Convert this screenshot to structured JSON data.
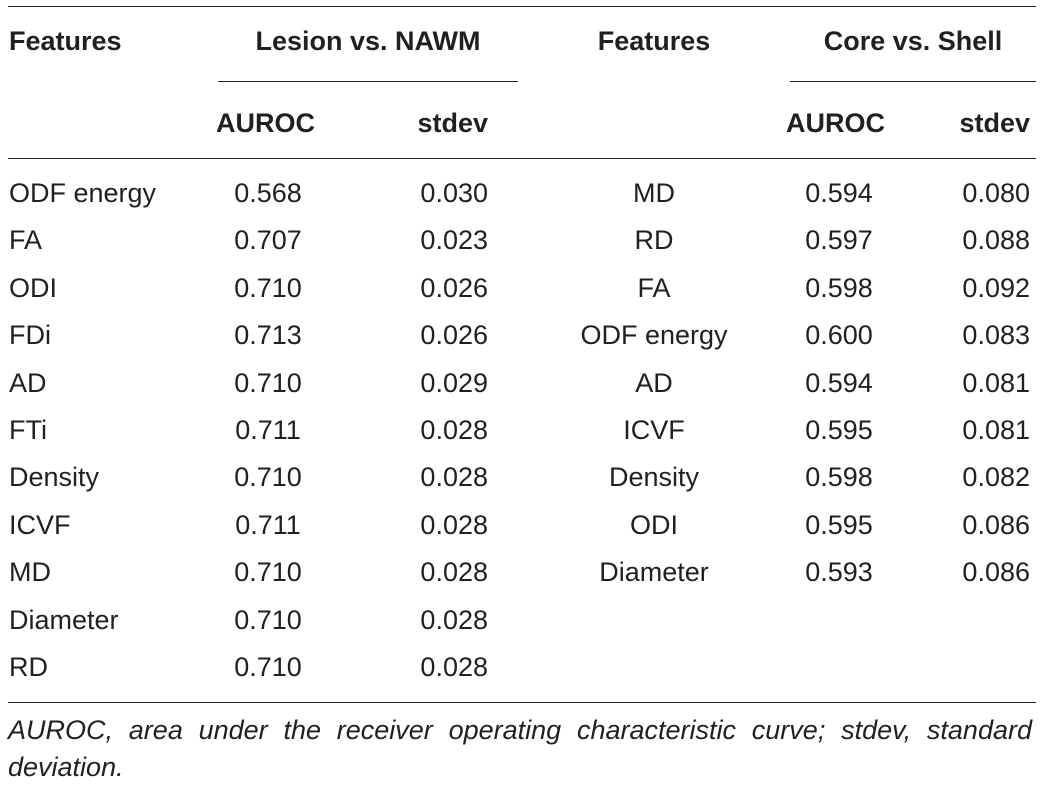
{
  "header": {
    "features_label_1": "Features",
    "group1_label": "Lesion vs. NAWM",
    "features_label_2": "Features",
    "group2_label": "Core vs. Shell",
    "auroc_label_1": "AUROC",
    "stdev_label_1": "stdev",
    "auroc_label_2": "AUROC",
    "stdev_label_2": "stdev"
  },
  "left_rows": [
    {
      "feature": "ODF energy",
      "auroc": "0.568",
      "stdev": "0.030"
    },
    {
      "feature": "FA",
      "auroc": "0.707",
      "stdev": "0.023"
    },
    {
      "feature": "ODI",
      "auroc": "0.710",
      "stdev": "0.026"
    },
    {
      "feature": "FDi",
      "auroc": "0.713",
      "stdev": "0.026"
    },
    {
      "feature": "AD",
      "auroc": "0.710",
      "stdev": "0.029"
    },
    {
      "feature": "FTi",
      "auroc": "0.711",
      "stdev": "0.028"
    },
    {
      "feature": "Density",
      "auroc": "0.710",
      "stdev": "0.028"
    },
    {
      "feature": "ICVF",
      "auroc": "0.711",
      "stdev": "0.028"
    },
    {
      "feature": "MD",
      "auroc": "0.710",
      "stdev": "0.028"
    },
    {
      "feature": "Diameter",
      "auroc": "0.710",
      "stdev": "0.028"
    },
    {
      "feature": "RD",
      "auroc": "0.710",
      "stdev": "0.028"
    }
  ],
  "right_rows": [
    {
      "feature": "MD",
      "auroc": "0.594",
      "stdev": "0.080"
    },
    {
      "feature": "RD",
      "auroc": "0.597",
      "stdev": "0.088"
    },
    {
      "feature": "FA",
      "auroc": "0.598",
      "stdev": "0.092"
    },
    {
      "feature": "ODF energy",
      "auroc": "0.600",
      "stdev": "0.083"
    },
    {
      "feature": "AD",
      "auroc": "0.594",
      "stdev": "0.081"
    },
    {
      "feature": "ICVF",
      "auroc": "0.595",
      "stdev": "0.081"
    },
    {
      "feature": "Density",
      "auroc": "0.598",
      "stdev": "0.082"
    },
    {
      "feature": "ODI",
      "auroc": "0.595",
      "stdev": "0.086"
    },
    {
      "feature": "Diameter",
      "auroc": "0.593",
      "stdev": "0.086"
    }
  ],
  "footnote": "AUROC, area under the receiver operating characteristic curve; stdev, standard deviation."
}
